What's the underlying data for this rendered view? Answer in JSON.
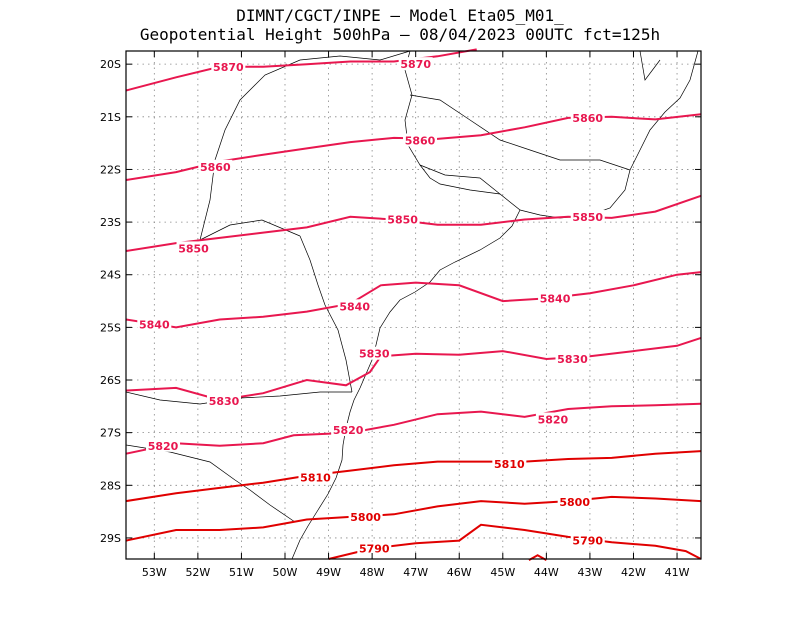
{
  "title_line1": "DIMNT/CGCT/INPE —  Model Eta05_M01_",
  "title_line2": "Geopotential Height 500hPa —  08/04/2023 00UTC fct=125h",
  "colors": {
    "contour_high": "#e8174f",
    "contour_low": "#e00000",
    "coast": "#000000",
    "grid": "#888888"
  },
  "chart_data": {
    "type": "contour-map",
    "xlim": [
      -53.65,
      -40.45
    ],
    "ylim": [
      -29.4,
      -19.75
    ],
    "x_ticks": [
      -53,
      -52,
      -51,
      -50,
      -49,
      -48,
      -47,
      -46,
      -45,
      -44,
      -43,
      -42,
      -41
    ],
    "x_tick_labels": [
      "53W",
      "52W",
      "51W",
      "50W",
      "49W",
      "48W",
      "47W",
      "46W",
      "45W",
      "44W",
      "43W",
      "42W",
      "41W"
    ],
    "y_ticks": [
      -20,
      -21,
      -22,
      -23,
      -24,
      -25,
      -26,
      -27,
      -28,
      -29
    ],
    "y_tick_labels": [
      "20S",
      "21S",
      "22S",
      "23S",
      "24S",
      "25S",
      "26S",
      "27S",
      "28S",
      "29S"
    ],
    "grid": true,
    "contours": [
      {
        "level": "5870",
        "points": [
          [
            -53.65,
            -20.5
          ],
          [
            -52.5,
            -20.25
          ],
          [
            -51.5,
            -20.05
          ],
          [
            -50.5,
            -20.05
          ],
          [
            -49.5,
            -20.0
          ],
          [
            -48.5,
            -19.95
          ],
          [
            -47.5,
            -19.95
          ],
          [
            -46.5,
            -19.85
          ],
          [
            -45.6,
            -19.72
          ]
        ],
        "labels": [
          [
            -51.3,
            -20.05
          ],
          [
            -47.0,
            -20.0
          ]
        ]
      },
      {
        "level": "5860",
        "points": [
          [
            -53.65,
            -22.2
          ],
          [
            -52.5,
            -22.05
          ],
          [
            -51.5,
            -21.85
          ],
          [
            -50.5,
            -21.72
          ],
          [
            -49.5,
            -21.6
          ],
          [
            -48.5,
            -21.48
          ],
          [
            -47.5,
            -21.4
          ],
          [
            -46.5,
            -21.42
          ],
          [
            -45.5,
            -21.35
          ],
          [
            -44.5,
            -21.2
          ],
          [
            -43.5,
            -21.02
          ],
          [
            -42.5,
            -21.0
          ],
          [
            -41.5,
            -21.05
          ],
          [
            -40.45,
            -20.95
          ]
        ],
        "labels": [
          [
            -51.6,
            -21.95
          ],
          [
            -46.9,
            -21.45
          ],
          [
            -43.05,
            -21.02
          ]
        ]
      },
      {
        "level": "5850",
        "points": [
          [
            -53.65,
            -23.55
          ],
          [
            -52.5,
            -23.4
          ],
          [
            -51.5,
            -23.3
          ],
          [
            -50.5,
            -23.2
          ],
          [
            -49.5,
            -23.1
          ],
          [
            -48.5,
            -22.9
          ],
          [
            -47.5,
            -22.95
          ],
          [
            -46.5,
            -23.05
          ],
          [
            -45.5,
            -23.05
          ],
          [
            -44.5,
            -22.95
          ],
          [
            -43.5,
            -22.9
          ],
          [
            -42.5,
            -22.92
          ],
          [
            -41.5,
            -22.8
          ],
          [
            -40.45,
            -22.5
          ]
        ],
        "labels": [
          [
            -52.1,
            -23.5
          ],
          [
            -47.3,
            -22.95
          ],
          [
            -43.05,
            -22.9
          ]
        ]
      },
      {
        "level": "5840",
        "points": [
          [
            -53.65,
            -24.85
          ],
          [
            -52.5,
            -25.0
          ],
          [
            -51.5,
            -24.85
          ],
          [
            -50.5,
            -24.8
          ],
          [
            -49.5,
            -24.7
          ],
          [
            -48.5,
            -24.55
          ],
          [
            -47.8,
            -24.2
          ],
          [
            -47.0,
            -24.15
          ],
          [
            -46.0,
            -24.2
          ],
          [
            -45.0,
            -24.5
          ],
          [
            -44.0,
            -24.45
          ],
          [
            -43.0,
            -24.35
          ],
          [
            -42.0,
            -24.2
          ],
          [
            -41.0,
            -24.0
          ],
          [
            -40.45,
            -23.95
          ]
        ],
        "labels": [
          [
            -53.0,
            -24.95
          ],
          [
            -48.4,
            -24.6
          ],
          [
            -43.8,
            -24.45
          ]
        ]
      },
      {
        "level": "5830",
        "points": [
          [
            -53.65,
            -26.2
          ],
          [
            -52.5,
            -26.15
          ],
          [
            -51.5,
            -26.38
          ],
          [
            -50.5,
            -26.25
          ],
          [
            -49.5,
            -26.0
          ],
          [
            -48.6,
            -26.1
          ],
          [
            -48.05,
            -25.85
          ],
          [
            -47.8,
            -25.55
          ],
          [
            -47.0,
            -25.5
          ],
          [
            -46.0,
            -25.52
          ],
          [
            -45.0,
            -25.45
          ],
          [
            -44.0,
            -25.6
          ],
          [
            -43.0,
            -25.55
          ],
          [
            -42.0,
            -25.45
          ],
          [
            -41.0,
            -25.35
          ],
          [
            -40.45,
            -25.2
          ]
        ],
        "labels": [
          [
            -51.4,
            -26.4
          ],
          [
            -47.95,
            -25.5
          ],
          [
            -43.4,
            -25.6
          ]
        ]
      },
      {
        "level": "5820",
        "points": [
          [
            -53.65,
            -27.4
          ],
          [
            -52.5,
            -27.2
          ],
          [
            -51.5,
            -27.25
          ],
          [
            -50.5,
            -27.2
          ],
          [
            -49.8,
            -27.05
          ],
          [
            -48.5,
            -27.0
          ],
          [
            -47.5,
            -26.85
          ],
          [
            -46.5,
            -26.65
          ],
          [
            -45.5,
            -26.6
          ],
          [
            -44.5,
            -26.7
          ],
          [
            -43.5,
            -26.55
          ],
          [
            -42.5,
            -26.5
          ],
          [
            -41.5,
            -26.48
          ],
          [
            -40.45,
            -26.45
          ]
        ],
        "labels": [
          [
            -52.8,
            -27.25
          ],
          [
            -48.55,
            -26.95
          ],
          [
            -43.85,
            -26.75
          ]
        ]
      },
      {
        "level": "5810",
        "points": [
          [
            -53.65,
            -28.3
          ],
          [
            -52.5,
            -28.15
          ],
          [
            -51.5,
            -28.05
          ],
          [
            -50.5,
            -27.95
          ],
          [
            -49.5,
            -27.82
          ],
          [
            -48.5,
            -27.72
          ],
          [
            -47.5,
            -27.62
          ],
          [
            -46.5,
            -27.55
          ],
          [
            -45.5,
            -27.55
          ],
          [
            -44.5,
            -27.55
          ],
          [
            -43.5,
            -27.5
          ],
          [
            -42.5,
            -27.48
          ],
          [
            -41.5,
            -27.4
          ],
          [
            -40.45,
            -27.35
          ]
        ],
        "labels": [
          [
            -49.3,
            -27.85
          ],
          [
            -44.85,
            -27.6
          ]
        ]
      },
      {
        "level": "5800",
        "points": [
          [
            -53.65,
            -29.05
          ],
          [
            -52.5,
            -28.85
          ],
          [
            -51.5,
            -28.85
          ],
          [
            -50.5,
            -28.8
          ],
          [
            -49.5,
            -28.65
          ],
          [
            -48.5,
            -28.6
          ],
          [
            -47.5,
            -28.55
          ],
          [
            -46.5,
            -28.4
          ],
          [
            -45.5,
            -28.3
          ],
          [
            -44.5,
            -28.35
          ],
          [
            -43.5,
            -28.3
          ],
          [
            -42.5,
            -28.22
          ],
          [
            -41.5,
            -28.25
          ],
          [
            -40.45,
            -28.3
          ]
        ],
        "labels": [
          [
            -48.15,
            -28.6
          ],
          [
            -43.35,
            -28.32
          ]
        ]
      },
      {
        "level": "5790",
        "points": [
          [
            -49.0,
            -29.4
          ],
          [
            -48.0,
            -29.2
          ],
          [
            -47.0,
            -29.1
          ],
          [
            -46.0,
            -29.05
          ],
          [
            -45.5,
            -28.75
          ],
          [
            -44.5,
            -28.85
          ],
          [
            -43.5,
            -28.98
          ],
          [
            -42.5,
            -29.08
          ],
          [
            -41.5,
            -29.15
          ],
          [
            -40.8,
            -29.25
          ],
          [
            -40.45,
            -29.4
          ]
        ],
        "labels": [
          [
            -47.95,
            -29.2
          ],
          [
            -43.05,
            -29.05
          ]
        ]
      },
      {
        "level": "",
        "points": [
          [
            -44.4,
            -29.42
          ],
          [
            -44.2,
            -29.33
          ],
          [
            -44.0,
            -29.42
          ]
        ],
        "labels": []
      }
    ]
  }
}
